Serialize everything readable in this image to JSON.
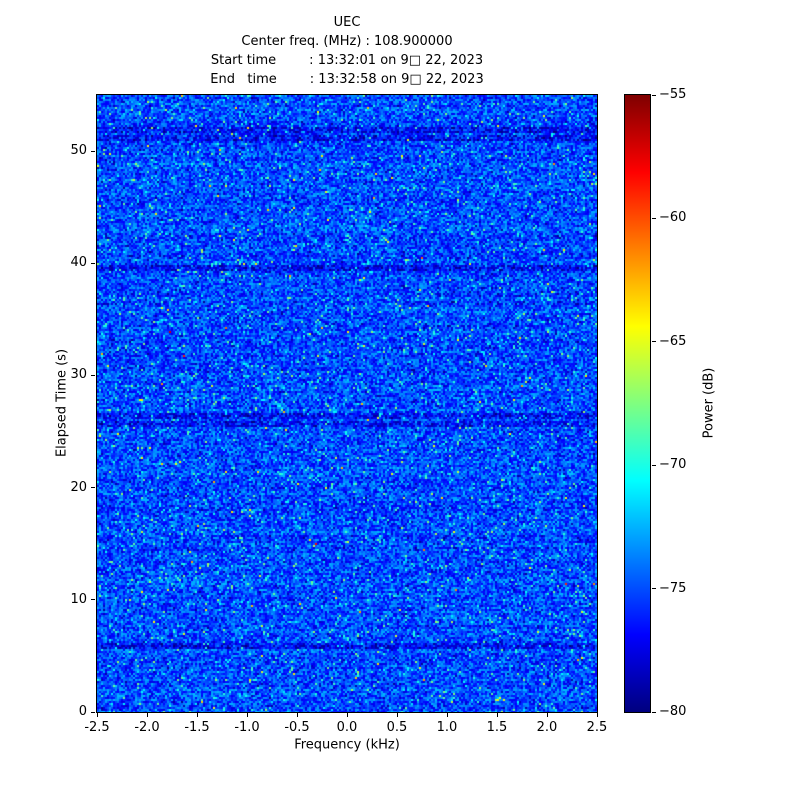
{
  "header": {
    "line_center_freq": "Center freq. (MHz) : 108.900000",
    "line_start_time": "Start time        : 13:32:01 on 9□ 22, 2023",
    "line_end_time": "End   time        : 13:32:58 on 9□ 22, 2023"
  },
  "chart_data": {
    "type": "heatmap",
    "title": "UEC",
    "subtitle_lines": [
      "Center freq. (MHz) : 108.900000",
      "Start time        : 13:32:01 on 9□ 22, 2023",
      "End   time        : 13:32:58 on 9□ 22, 2023"
    ],
    "xlabel": "Frequency (kHz)",
    "ylabel": "Elapsed Time (s)",
    "xlim": [
      -2.5,
      2.5
    ],
    "ylim": [
      0,
      55
    ],
    "grid": false,
    "x_ticks": [
      {
        "value": -2.5,
        "label": "-2.5"
      },
      {
        "value": -2.0,
        "label": "-2.0"
      },
      {
        "value": -1.5,
        "label": "-1.5"
      },
      {
        "value": -1.0,
        "label": "-1.0"
      },
      {
        "value": -0.5,
        "label": "-0.5"
      },
      {
        "value": 0.0,
        "label": "0.0"
      },
      {
        "value": 0.5,
        "label": "0.5"
      },
      {
        "value": 1.0,
        "label": "1.0"
      },
      {
        "value": 1.5,
        "label": "1.5"
      },
      {
        "value": 2.0,
        "label": "2.0"
      },
      {
        "value": 2.5,
        "label": "2.5"
      }
    ],
    "y_ticks": [
      {
        "value": 0,
        "label": "0"
      },
      {
        "value": 10,
        "label": "10"
      },
      {
        "value": 20,
        "label": "20"
      },
      {
        "value": 30,
        "label": "30"
      },
      {
        "value": 40,
        "label": "40"
      },
      {
        "value": 50,
        "label": "50"
      }
    ],
    "colorbar": {
      "label": "Power (dB)",
      "min": -80,
      "max": -55,
      "colormap": "jet",
      "ticks": [
        {
          "value": -55,
          "label": "−55"
        },
        {
          "value": -60,
          "label": "−60"
        },
        {
          "value": -65,
          "label": "−65"
        },
        {
          "value": -70,
          "label": "−70"
        },
        {
          "value": -75,
          "label": "−75"
        },
        {
          "value": -80,
          "label": "−80"
        }
      ],
      "stops": [
        {
          "pos": 0,
          "color": "#00007f"
        },
        {
          "pos": 12.5,
          "color": "#0000ff"
        },
        {
          "pos": 37.5,
          "color": "#00ffff"
        },
        {
          "pos": 62.5,
          "color": "#ffff00"
        },
        {
          "pos": 87.5,
          "color": "#ff0000"
        },
        {
          "pos": 100,
          "color": "#7f0000"
        }
      ]
    },
    "noise": {
      "seed": 20230922,
      "description": "random RF noise floor, mostly -78 to -71 dB (blue) with sparse cyan/green speckles and a few darker horizontal bands",
      "base_power_db": -76,
      "speckle_max_db": -64,
      "dark_band_rows_s": [
        52.0,
        51.3,
        39.6,
        26.4,
        25.7,
        6.0
      ]
    }
  }
}
